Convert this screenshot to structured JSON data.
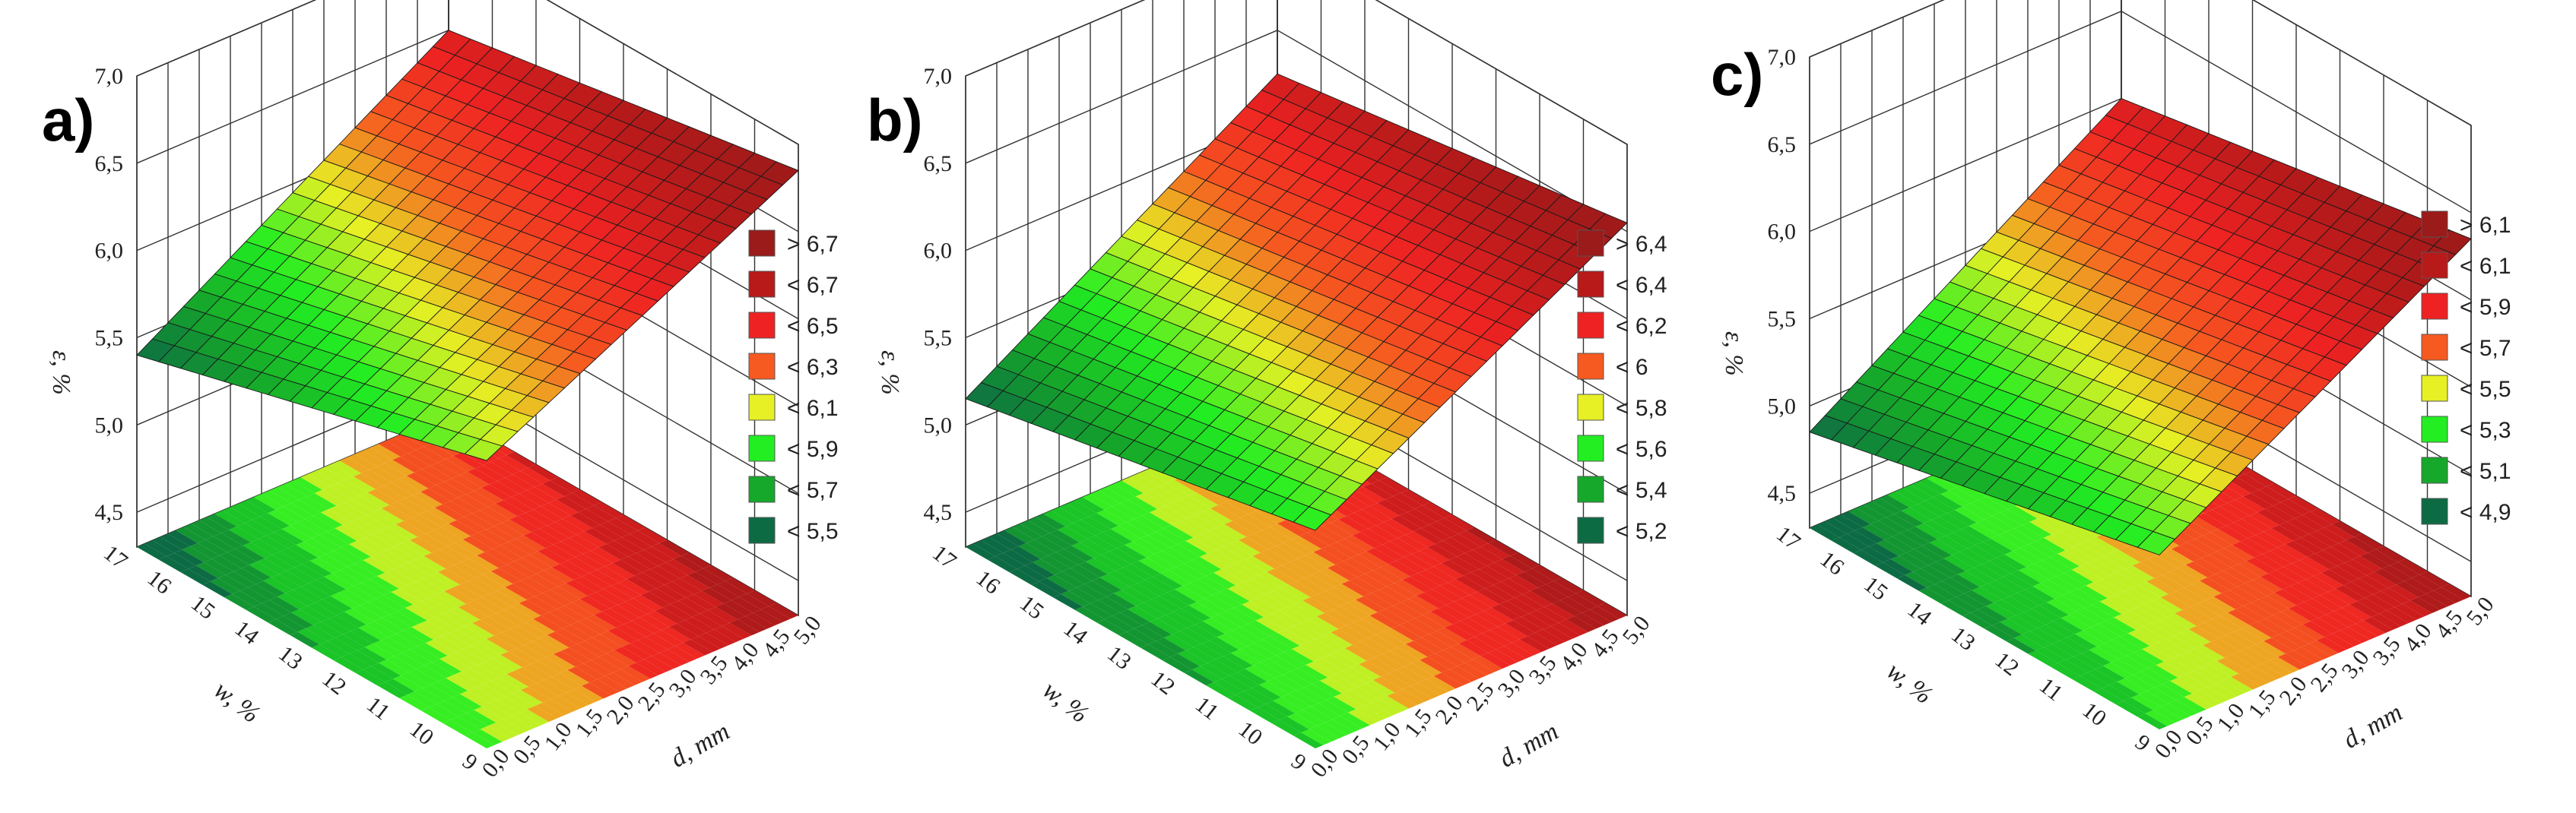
{
  "colors": {
    "dark_red": "#9b1a1a",
    "red2": "#c81c1c",
    "red": "#ee2222",
    "orange": "#f65a20",
    "yellow": "#e6f024",
    "light_green": "#22ee22",
    "green": "#16a82a",
    "dark_green": "#0d6b44"
  },
  "chart_data": [
    {
      "type": "surface",
      "panel_label": "a)",
      "x_label": "d, mm",
      "y_label": "w, %",
      "z_label": "ε, %",
      "x_ticks": [
        "0,0",
        "0,5",
        "1,0",
        "1,5",
        "2,0",
        "2,5",
        "3,0",
        "3,5",
        "4,0",
        "4,5",
        "5,0"
      ],
      "y_ticks": [
        "9",
        "10",
        "11",
        "12",
        "13",
        "14",
        "15",
        "16",
        "17"
      ],
      "z_ticks": [
        "4,5",
        "5,0",
        "5,5",
        "6,0",
        "6,5",
        "7,0"
      ],
      "xlim": [
        0,
        5
      ],
      "ylim": [
        9,
        17
      ],
      "zlim": [
        4.3,
        7.0
      ],
      "surface": {
        "z_at_d0_w17": 5.4,
        "z_at_d5_w17": 6.5,
        "z_at_d0_w9": 5.95,
        "z_at_d5_w9": 6.85
      },
      "legend": [
        "> 6,7",
        "< 6,7",
        "< 6,5",
        "< 6,3",
        "< 6,1",
        "< 5,9",
        "< 5,7",
        "< 5,5"
      ],
      "legend_colors": [
        "#9b1a1a",
        "#b81a1a",
        "#ee2222",
        "#f65a20",
        "#e6f024",
        "#22ee22",
        "#16a82a",
        "#0d6b44"
      ]
    },
    {
      "type": "surface",
      "panel_label": "b)",
      "x_label": "d, mm",
      "y_label": "w, %",
      "z_label": "ε, %",
      "x_ticks": [
        "0,0",
        "0,5",
        "1,0",
        "1,5",
        "2,0",
        "2,5",
        "3,0",
        "3,5",
        "4,0",
        "4,5",
        "5,0"
      ],
      "y_ticks": [
        "9",
        "10",
        "11",
        "12",
        "13",
        "14",
        "15",
        "16",
        "17"
      ],
      "z_ticks": [
        "4,5",
        "5,0",
        "5,5",
        "6,0",
        "6,5",
        "7,0"
      ],
      "xlim": [
        0,
        5
      ],
      "ylim": [
        9,
        17
      ],
      "zlim": [
        4.3,
        7.0
      ],
      "surface": {
        "z_at_d0_w17": 5.15,
        "z_at_d5_w17": 6.25,
        "z_at_d0_w9": 5.55,
        "z_at_d5_w9": 6.55
      },
      "legend": [
        "> 6,4",
        "< 6,4",
        "< 6,2",
        "< 6",
        "< 5,8",
        "< 5,6",
        "< 5,4",
        "< 5,2"
      ],
      "legend_colors": [
        "#9b1a1a",
        "#b81a1a",
        "#ee2222",
        "#f65a20",
        "#e6f024",
        "#22ee22",
        "#16a82a",
        "#0d6b44"
      ]
    },
    {
      "type": "surface",
      "panel_label": "c)",
      "x_label": "d, mm",
      "y_label": "w, %",
      "z_label": "ε, %",
      "x_ticks": [
        "0,0",
        "0,5",
        "1,0",
        "1,5",
        "2,0",
        "2,5",
        "3,0",
        "3,5",
        "4,0",
        "4,5",
        "5,0"
      ],
      "y_ticks": [
        "9",
        "10",
        "11",
        "12",
        "13",
        "14",
        "15",
        "16",
        "17"
      ],
      "z_ticks": [
        "4,5",
        "5,0",
        "5,5",
        "6,0",
        "6,5",
        "7,0"
      ],
      "xlim": [
        0,
        5
      ],
      "ylim": [
        9,
        17
      ],
      "zlim": [
        4.3,
        7.0
      ],
      "surface": {
        "z_at_d0_w17": 4.85,
        "z_at_d5_w17": 6.0,
        "z_at_d0_w9": 5.3,
        "z_at_d5_w9": 6.35
      },
      "legend": [
        "> 6,1",
        "< 6,1",
        "< 5,9",
        "< 5,7",
        "< 5,5",
        "< 5,3",
        "< 5,1",
        "< 4,9"
      ],
      "legend_colors": [
        "#9b1a1a",
        "#b81a1a",
        "#ee2222",
        "#f65a20",
        "#e6f024",
        "#22ee22",
        "#16a82a",
        "#0d6b44"
      ]
    }
  ]
}
